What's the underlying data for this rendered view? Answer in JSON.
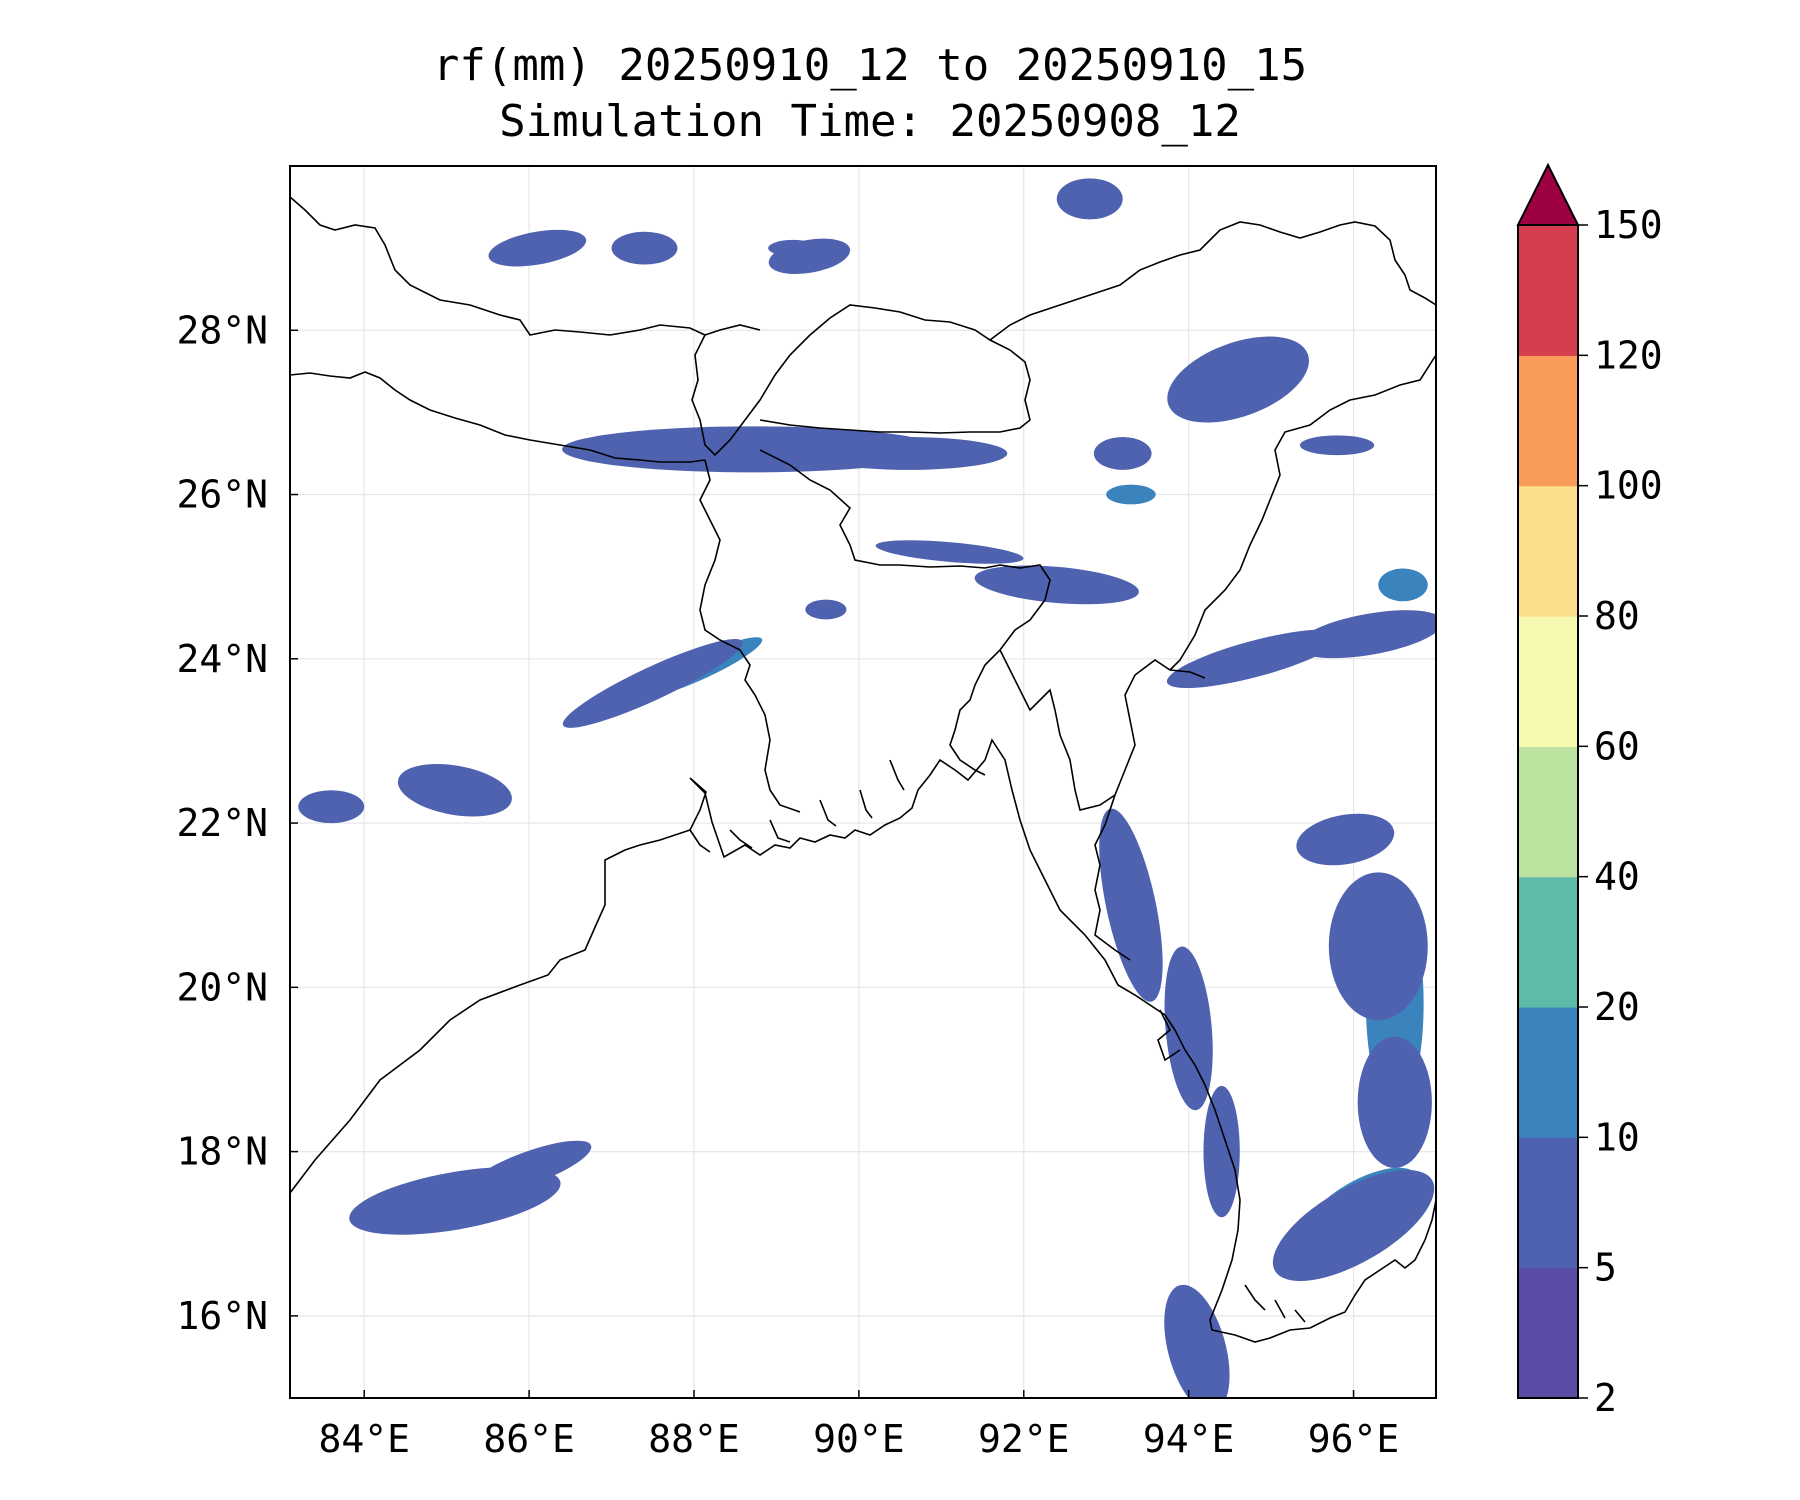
{
  "title_line1": "rf(mm) 20250910_12 to 20250910_15",
  "title_line2": "Simulation Time: 20250908_12",
  "map": {
    "lon_range": [
      83.1,
      97.0
    ],
    "lat_range": [
      15.0,
      30.0
    ],
    "lon_ticks": [
      {
        "value": 84,
        "label": "84°E"
      },
      {
        "value": 86,
        "label": "86°E"
      },
      {
        "value": 88,
        "label": "88°E"
      },
      {
        "value": 90,
        "label": "90°E"
      },
      {
        "value": 92,
        "label": "92°E"
      },
      {
        "value": 94,
        "label": "94°E"
      },
      {
        "value": 96,
        "label": "96°E"
      }
    ],
    "lat_ticks": [
      {
        "value": 16,
        "label": "16°N"
      },
      {
        "value": 18,
        "label": "18°N"
      },
      {
        "value": 20,
        "label": "20°N"
      },
      {
        "value": 22,
        "label": "22°N"
      },
      {
        "value": 24,
        "label": "24°N"
      },
      {
        "value": 26,
        "label": "26°N"
      },
      {
        "value": 28,
        "label": "28°N"
      }
    ],
    "gridlines": true
  },
  "colorbar": {
    "levels": [
      "2",
      "5",
      "10",
      "20",
      "40",
      "60",
      "80",
      "100",
      "120",
      "150"
    ],
    "colors": [
      "#5a4da6",
      "#4f62b0",
      "#3b83bd",
      "#5fbaa8",
      "#bde3a0",
      "#f6f9b0",
      "#fcdf8a",
      "#f99c59",
      "#d53e4f"
    ],
    "extend_color": "#9e0142",
    "extend": "max"
  },
  "rain_cells": [
    {
      "lon": 88.6,
      "lat": 26.6,
      "rx": 1.6,
      "ry": 0.22,
      "level": 3,
      "angle": -2
    },
    {
      "lon": 90.0,
      "lat": 26.55,
      "rx": 0.9,
      "ry": 0.18,
      "level": 3,
      "angle": 0
    },
    {
      "lon": 87.6,
      "lat": 26.55,
      "rx": 0.8,
      "ry": 0.15,
      "level": 2,
      "angle": 0
    },
    {
      "lon": 88.7,
      "lat": 26.55,
      "rx": 2.3,
      "ry": 0.28,
      "level": 1,
      "angle": 0
    },
    {
      "lon": 90.6,
      "lat": 26.5,
      "rx": 1.2,
      "ry": 0.2,
      "level": 1,
      "angle": 0
    },
    {
      "lon": 92.4,
      "lat": 24.9,
      "rx": 1.0,
      "ry": 0.22,
      "level": 1,
      "angle": 5
    },
    {
      "lon": 91.1,
      "lat": 25.3,
      "rx": 0.9,
      "ry": 0.12,
      "level": 1,
      "angle": 5
    },
    {
      "lon": 94.6,
      "lat": 27.6,
      "rx": 0.45,
      "ry": 0.25,
      "level": 3,
      "angle": -20
    },
    {
      "lon": 94.6,
      "lat": 27.4,
      "rx": 0.9,
      "ry": 0.45,
      "level": 1,
      "angle": -20
    },
    {
      "lon": 95.8,
      "lat": 26.6,
      "rx": 0.45,
      "ry": 0.12,
      "level": 1,
      "angle": 0
    },
    {
      "lon": 93.2,
      "lat": 26.5,
      "rx": 0.35,
      "ry": 0.2,
      "level": 1,
      "angle": 0
    },
    {
      "lon": 94.8,
      "lat": 24.0,
      "rx": 1.1,
      "ry": 0.22,
      "level": 1,
      "angle": -15
    },
    {
      "lon": 96.2,
      "lat": 24.3,
      "rx": 0.9,
      "ry": 0.25,
      "level": 1,
      "angle": -10
    },
    {
      "lon": 96.6,
      "lat": 24.9,
      "rx": 0.3,
      "ry": 0.2,
      "level": 2,
      "angle": 0
    },
    {
      "lon": 88.1,
      "lat": 23.9,
      "rx": 0.8,
      "ry": 0.14,
      "level": 2,
      "angle": -25
    },
    {
      "lon": 87.5,
      "lat": 23.7,
      "rx": 1.2,
      "ry": 0.2,
      "level": 1,
      "angle": -25
    },
    {
      "lon": 86.1,
      "lat": 29.0,
      "rx": 0.6,
      "ry": 0.2,
      "level": 1,
      "angle": -10
    },
    {
      "lon": 87.4,
      "lat": 29.0,
      "rx": 0.4,
      "ry": 0.2,
      "level": 1,
      "angle": 0
    },
    {
      "lon": 89.4,
      "lat": 28.9,
      "rx": 0.5,
      "ry": 0.2,
      "level": 1,
      "angle": -10
    },
    {
      "lon": 92.8,
      "lat": 29.6,
      "rx": 0.4,
      "ry": 0.25,
      "level": 1,
      "angle": 0
    },
    {
      "lon": 93.3,
      "lat": 21.0,
      "rx": 0.3,
      "ry": 1.2,
      "level": 1,
      "angle": -12
    },
    {
      "lon": 94.0,
      "lat": 19.5,
      "rx": 0.28,
      "ry": 1.0,
      "level": 1,
      "angle": -5
    },
    {
      "lon": 94.4,
      "lat": 18.0,
      "rx": 0.22,
      "ry": 0.8,
      "level": 1,
      "angle": 0
    },
    {
      "lon": 96.5,
      "lat": 19.8,
      "rx": 0.35,
      "ry": 1.3,
      "level": 2,
      "angle": 0
    },
    {
      "lon": 96.4,
      "lat": 20.0,
      "rx": 0.12,
      "ry": 0.3,
      "level": 3,
      "angle": 0
    },
    {
      "lon": 96.5,
      "lat": 19.0,
      "rx": 0.18,
      "ry": 0.2,
      "level": 3,
      "angle": 0
    },
    {
      "lon": 96.3,
      "lat": 20.5,
      "rx": 0.6,
      "ry": 0.9,
      "level": 1,
      "angle": 0
    },
    {
      "lon": 96.5,
      "lat": 18.6,
      "rx": 0.45,
      "ry": 0.8,
      "level": 1,
      "angle": 0
    },
    {
      "lon": 96.1,
      "lat": 17.3,
      "rx": 0.8,
      "ry": 0.35,
      "level": 2,
      "angle": -30
    },
    {
      "lon": 96.0,
      "lat": 17.1,
      "rx": 1.1,
      "ry": 0.45,
      "level": 1,
      "angle": -30
    },
    {
      "lon": 95.9,
      "lat": 21.8,
      "rx": 0.6,
      "ry": 0.3,
      "level": 1,
      "angle": -10
    },
    {
      "lon": 84.9,
      "lat": 17.4,
      "rx": 0.9,
      "ry": 0.22,
      "level": 2,
      "angle": -10
    },
    {
      "lon": 85.1,
      "lat": 17.4,
      "rx": 1.3,
      "ry": 0.35,
      "level": 1,
      "angle": -10
    },
    {
      "lon": 86.0,
      "lat": 17.8,
      "rx": 0.8,
      "ry": 0.2,
      "level": 1,
      "angle": -20
    },
    {
      "lon": 85.1,
      "lat": 22.4,
      "rx": 0.7,
      "ry": 0.3,
      "level": 1,
      "angle": 10
    },
    {
      "lon": 83.6,
      "lat": 22.2,
      "rx": 0.4,
      "ry": 0.2,
      "level": 1,
      "angle": 0
    },
    {
      "lon": 94.2,
      "lat": 15.4,
      "rx": 0.2,
      "ry": 0.5,
      "level": 2,
      "angle": -15
    },
    {
      "lon": 94.1,
      "lat": 15.6,
      "rx": 0.35,
      "ry": 0.8,
      "level": 1,
      "angle": -15
    },
    {
      "lon": 89.6,
      "lat": 24.6,
      "rx": 0.25,
      "ry": 0.12,
      "level": 1,
      "angle": 0
    },
    {
      "lon": 93.3,
      "lat": 26.0,
      "rx": 0.3,
      "ry": 0.12,
      "level": 2,
      "angle": 0
    },
    {
      "lon": 89.2,
      "lat": 29.0,
      "rx": 0.3,
      "ry": 0.1,
      "level": 1,
      "angle": 0
    }
  ]
}
